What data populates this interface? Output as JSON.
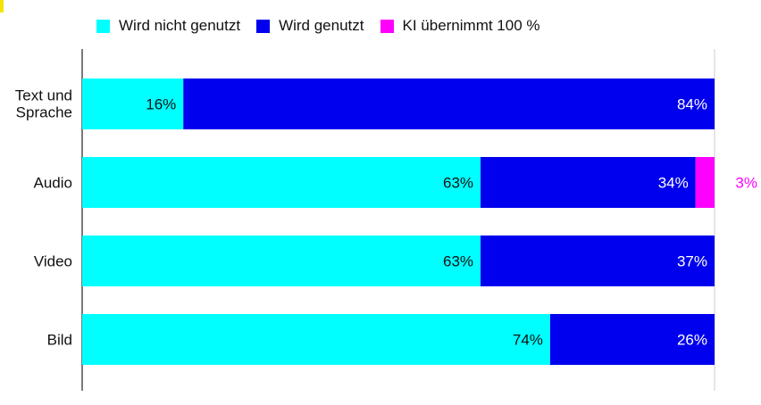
{
  "chart_data": {
    "type": "bar",
    "orientation": "horizontal",
    "stacked": true,
    "categories": [
      "Text und Sprache",
      "Audio",
      "Video",
      "Bild"
    ],
    "series": [
      {
        "name": "Wird nicht genutzt",
        "color": "#00ffff",
        "values": [
          16,
          63,
          63,
          74
        ],
        "labels": [
          "16%",
          "63%",
          "63%",
          "74%"
        ],
        "label_color": "#111111"
      },
      {
        "name": "Wird genutzt",
        "color": "#0000ee",
        "values": [
          84,
          34,
          37,
          26
        ],
        "labels": [
          "84%",
          "34%",
          "37%",
          "26%"
        ],
        "label_color": "#ffffff"
      },
      {
        "name": "KI übernimmt 100 %",
        "color": "#ff00ff",
        "values": [
          0,
          3,
          0,
          0
        ],
        "labels": [
          "",
          "3%",
          "",
          ""
        ],
        "label_color": "#ff00ff"
      }
    ],
    "xlim": [
      0,
      100
    ],
    "legend_position": "top",
    "grid": false
  }
}
